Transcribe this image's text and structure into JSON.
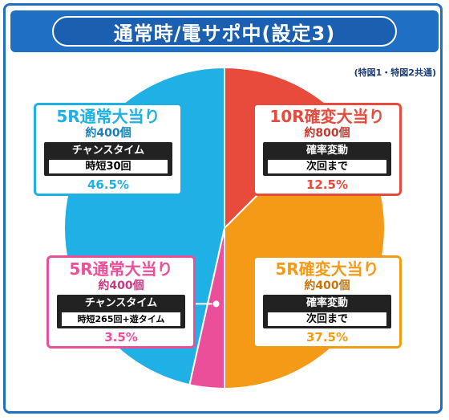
{
  "title": "通常時/電サポ中(設定3)",
  "note": "(特図1・特図2共通)",
  "colors": {
    "frame": "#1f6fc4",
    "cyan": "#1fb1e6",
    "red": "#e84a3c",
    "orange": "#f59a16",
    "pink": "#ec4f9a"
  },
  "chart_data": {
    "type": "pie",
    "start": "top",
    "direction": "clockwise",
    "slices": [
      {
        "label": "10R確変大当り",
        "value": 12.5,
        "color": "#e84a3c"
      },
      {
        "label": "5R確変大当り",
        "value": 37.5,
        "color": "#f59a16"
      },
      {
        "label": "5R通常大当り",
        "value": 3.5,
        "color": "#ec4f9a"
      },
      {
        "label": "5R通常大当り",
        "value": 46.5,
        "color": "#1fb1e6"
      }
    ]
  },
  "cards": {
    "top_left": {
      "head": "5R通常大当り",
      "sub": "約400個",
      "mode": "チャンスタイム",
      "detail": "時短30回",
      "pct": "46.5%"
    },
    "top_right": {
      "head": "10R確変大当り",
      "sub": "約800個",
      "mode": "確率変動",
      "detail": "次回まで",
      "pct": "12.5%"
    },
    "bottom_left": {
      "head": "5R通常大当り",
      "sub": "約400個",
      "mode": "チャンスタイム",
      "detail": "時短265回+遊タイム",
      "pct": "3.5%"
    },
    "bottom_right": {
      "head": "5R確変大当り",
      "sub": "約400個",
      "mode": "確率変動",
      "detail": "次回まで",
      "pct": "37.5%"
    }
  }
}
